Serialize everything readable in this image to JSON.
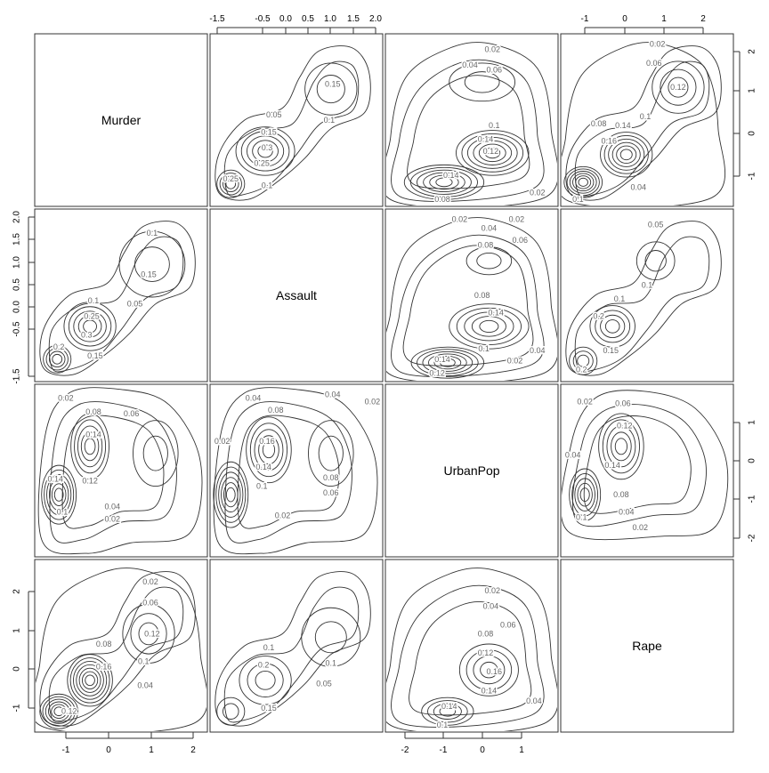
{
  "chart_data": {
    "type": "contour",
    "variables": [
      "Murder",
      "Assault",
      "UrbanPop",
      "Rape"
    ],
    "diagonal_labels": [
      "Murder",
      "Assault",
      "UrbanPop",
      "Rape"
    ],
    "axes": {
      "top_col1": [
        "-1.5",
        "-0.5",
        "0.0",
        "0.5",
        "1.0",
        "1.5",
        "2.0"
      ],
      "top_col3": [
        "-1",
        "0",
        "1",
        "2"
      ],
      "right_row0": [
        "2",
        "1",
        "0",
        "-1"
      ],
      "right_row2": [
        "1",
        "0",
        "-1",
        "-2"
      ],
      "left_row1": [
        "2.0",
        "1.5",
        "1.0",
        "0.5",
        "0.0",
        "-0.5",
        "-1.5"
      ],
      "left_row3": [
        "2",
        "1",
        "0",
        "-1"
      ],
      "bottom_col0": [
        "-1",
        "0",
        "1",
        "2"
      ],
      "bottom_col2": [
        "-2",
        "-1",
        "0",
        "1"
      ]
    },
    "contour_labels": {
      "p01": [
        "0.05",
        "0.15",
        "0.15",
        "0.1",
        "0.3",
        "0.25",
        "0.1",
        "0.25"
      ],
      "p02": [
        "0.02",
        "0.04",
        "0.06",
        "0.1",
        "0.14",
        "0.12",
        "0.14",
        "0.08",
        "0.02"
      ],
      "p03": [
        "0.02",
        "0.06",
        "0.12",
        "0.1",
        "0.08",
        "0.04",
        "0.14",
        "0.16",
        "0.1"
      ],
      "p10": [
        "0.1",
        "0.15",
        "0.1",
        "0.05",
        "0.25",
        "0.3",
        "0.15",
        "0.2"
      ],
      "p12": [
        "0.02",
        "0.02",
        "0.04",
        "0.06",
        "0.08",
        "0.08",
        "0.14",
        "0.1",
        "0.02",
        "0.04",
        "0.14",
        "0.12"
      ],
      "p13": [
        "0.05",
        "0.1",
        "0.1",
        "0.2",
        "0.15",
        "0.2"
      ],
      "p20": [
        "0.02",
        "0.08",
        "0.06",
        "0.14",
        "0.12",
        "0.04",
        "0.02",
        "0.1",
        "0.14"
      ],
      "p21": [
        "0.04",
        "0.04",
        "0.02",
        "0.08",
        "0.02",
        "0.16",
        "0.14",
        "0.1",
        "0.08",
        "0.06",
        "0.02"
      ],
      "p23": [
        "0.02",
        "0.06",
        "0.12",
        "0.04",
        "0.14",
        "0.08",
        "0.04",
        "0.02",
        "0.1"
      ],
      "p30": [
        "0.02",
        "0.06",
        "0.12",
        "0.08",
        "0.1",
        "0.16",
        "0.04",
        "0.12"
      ],
      "p31": [
        "0.1",
        "0.2",
        "0.1",
        "0.05",
        "0.15"
      ],
      "p32": [
        "0.02",
        "0.04",
        "0.06",
        "0.08",
        "0.12",
        "0.16",
        "0.14",
        "0.04",
        "0.14",
        "0.1"
      ]
    }
  }
}
